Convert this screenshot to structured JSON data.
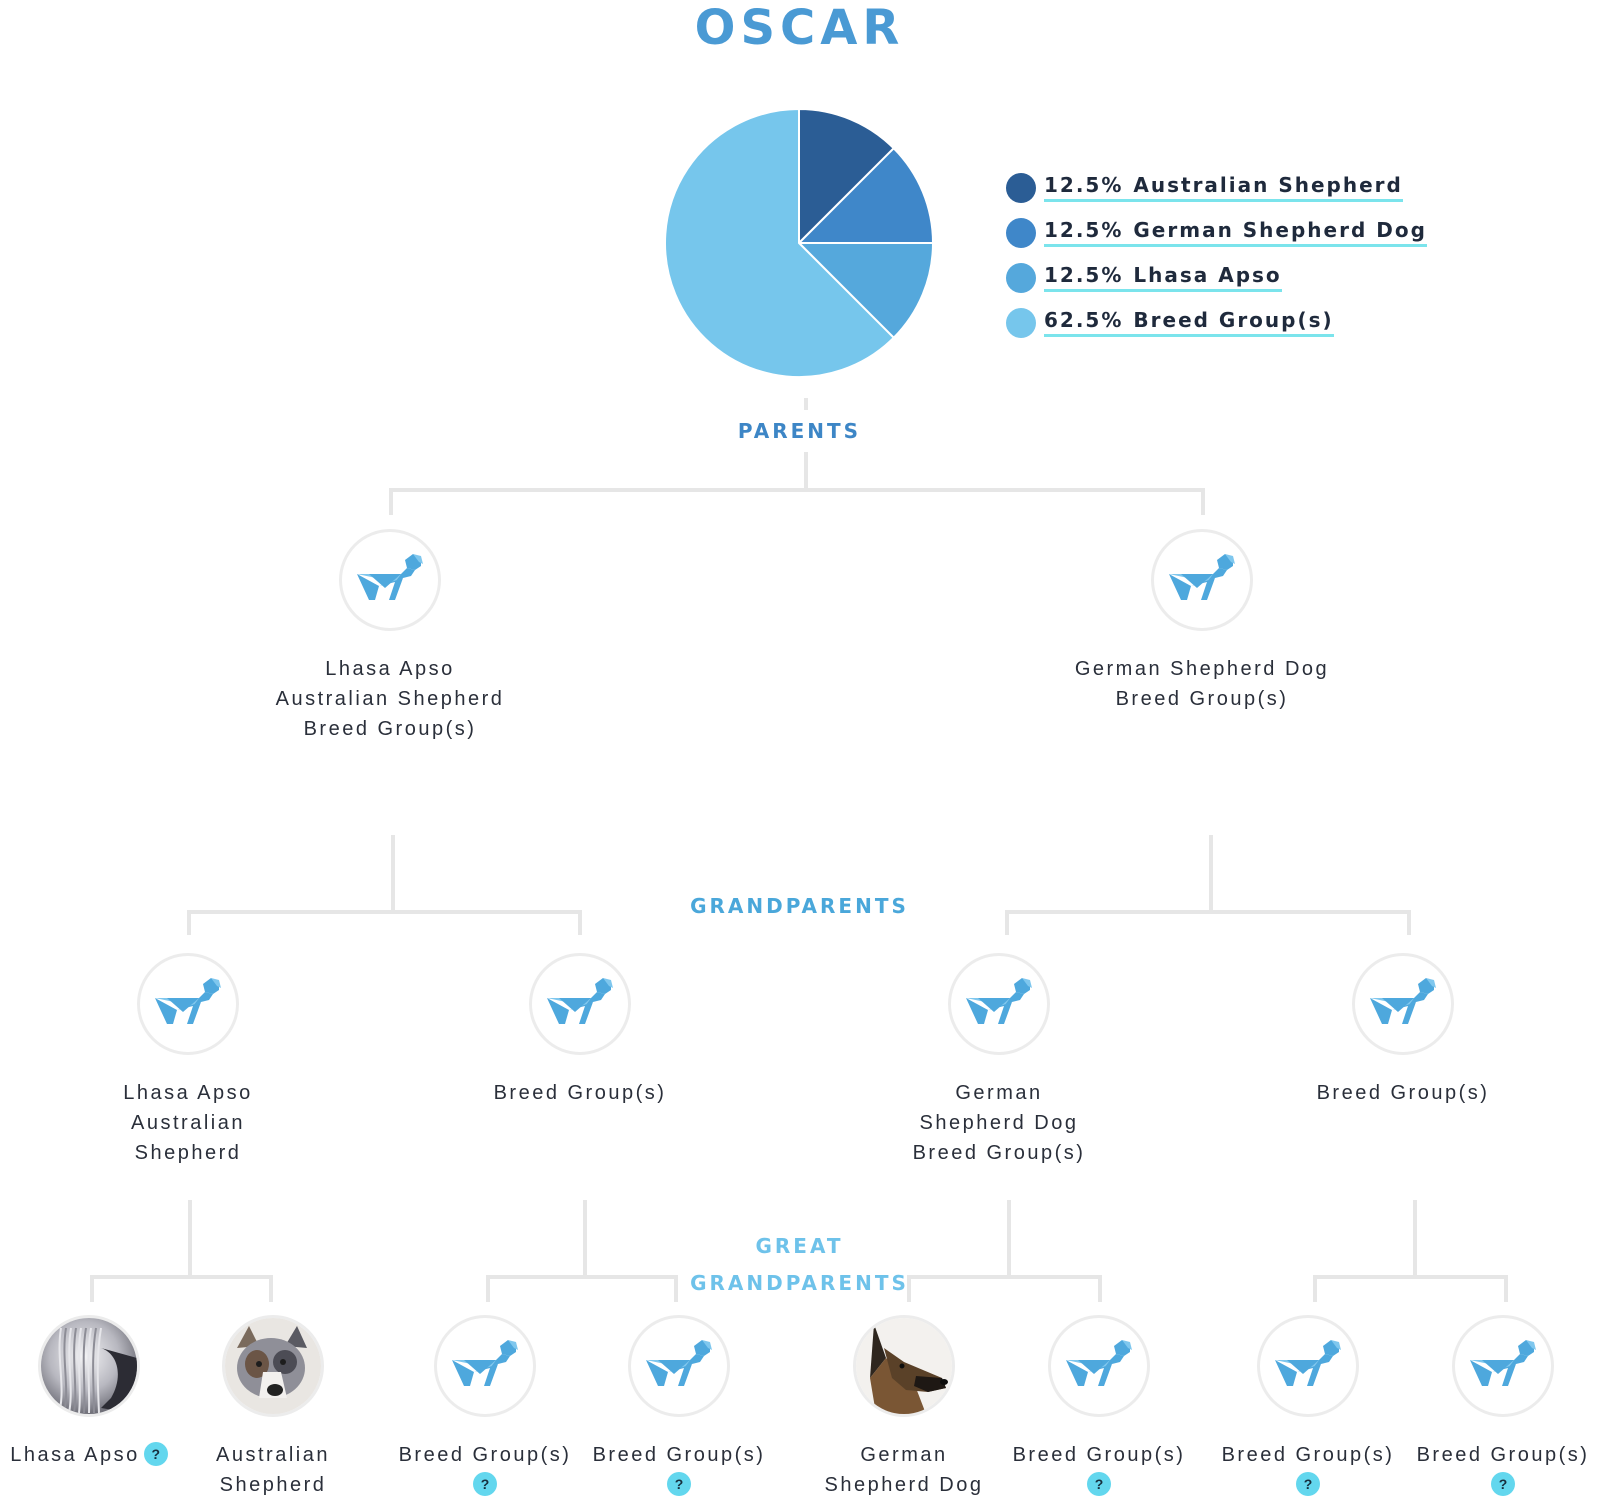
{
  "page": {
    "title": "OSCAR"
  },
  "colors": {
    "title": "#4a9ad4",
    "connector": "#e6e6e6",
    "help_badge": "#63d7ee",
    "dog_icon": "#4ea8dd",
    "dog_icon_light": "#7fc7ee"
  },
  "chart_data": {
    "type": "pie",
    "slices": [
      {
        "label": "Australian Shepherd",
        "pct_label": "12.5%",
        "value": 12.5,
        "color": "#2b5d95"
      },
      {
        "label": "German Shepherd Dog",
        "pct_label": "12.5%",
        "value": 12.5,
        "color": "#3f87c9"
      },
      {
        "label": "Lhasa Apso",
        "pct_label": "12.5%",
        "value": 12.5,
        "color": "#55a8dc"
      },
      {
        "label": "Breed Group(s)",
        "pct_label": "62.5%",
        "value": 62.5,
        "color": "#76c6ec"
      }
    ],
    "legend_position": "right"
  },
  "sections": {
    "parents": {
      "label": "PARENTS",
      "color": "#3d86c6"
    },
    "grandparents": {
      "label": "GRANDPARENTS",
      "color": "#4aa7da"
    },
    "great_grandparents": {
      "label_line1": "GREAT",
      "label_line2": "GRANDPARENTS",
      "color": "#6ec2ea"
    }
  },
  "parents": [
    {
      "icon": "dog-icon",
      "lines": [
        "Lhasa Apso",
        "Australian Shepherd",
        "Breed Group(s)"
      ]
    },
    {
      "icon": "dog-icon",
      "lines": [
        "German Shepherd Dog",
        "Breed Group(s)"
      ]
    }
  ],
  "grandparents": [
    {
      "icon": "dog-icon",
      "lines": [
        "Lhasa Apso",
        "Australian",
        "Shepherd"
      ]
    },
    {
      "icon": "dog-icon",
      "lines": [
        "Breed Group(s)"
      ]
    },
    {
      "icon": "dog-icon",
      "lines": [
        "German",
        "Shepherd Dog",
        "Breed Group(s)"
      ]
    },
    {
      "icon": "dog-icon",
      "lines": [
        "Breed Group(s)"
      ]
    }
  ],
  "great_grandparents": [
    {
      "icon": "lhasa-apso-photo",
      "lines": [
        "Lhasa Apso"
      ],
      "help": "?",
      "help_inline": true
    },
    {
      "icon": "australian-shepherd-photo",
      "lines": [
        "Australian",
        "Shepherd"
      ]
    },
    {
      "icon": "dog-icon",
      "lines": [
        "Breed Group(s)"
      ],
      "help": "?"
    },
    {
      "icon": "dog-icon",
      "lines": [
        "Breed Group(s)"
      ],
      "help": "?"
    },
    {
      "icon": "german-shepherd-photo",
      "lines": [
        "German",
        "Shepherd Dog"
      ]
    },
    {
      "icon": "dog-icon",
      "lines": [
        "Breed Group(s)"
      ],
      "help": "?"
    },
    {
      "icon": "dog-icon",
      "lines": [
        "Breed Group(s)"
      ],
      "help": "?"
    },
    {
      "icon": "dog-icon",
      "lines": [
        "Breed Group(s)"
      ],
      "help": "?"
    }
  ]
}
